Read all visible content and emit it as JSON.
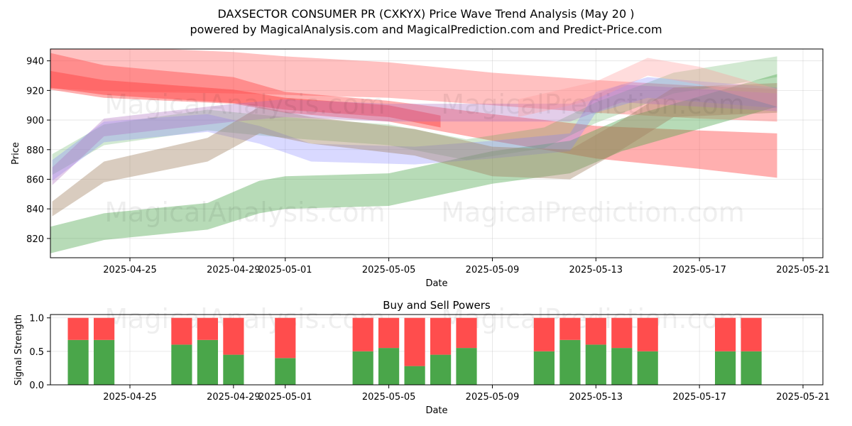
{
  "title_line1": "DAXSECTOR CONSUMER PR (CXKYX) Price Wave Trend Analysis (May 20 )",
  "title_line2": "powered by MagicalAnalysis.com and MagicalPrediction.com and Predict-Price.com",
  "watermarks": [
    "MagicalAnalysis.com",
    "MagicalPrediction.com"
  ],
  "colors": {
    "red": "#ff4d4d",
    "green": "#4aa64a",
    "blue": "#8080ff",
    "tan": "#a08060",
    "purple": "#b070c0",
    "pink": "#ff9a9a"
  },
  "chart_data": [
    {
      "type": "area",
      "title": "",
      "xlabel": "Date",
      "ylabel": "Price",
      "x_ticks": [
        "2025-04-25",
        "2025-04-29",
        "2025-05-01",
        "2025-05-05",
        "2025-05-09",
        "2025-05-13",
        "2025-05-17",
        "2025-05-21"
      ],
      "xlim": [
        "2025-04-21",
        "2025-05-21"
      ],
      "y_ticks": [
        820,
        840,
        860,
        880,
        900,
        920,
        940
      ],
      "ylim": [
        807,
        948
      ],
      "grid": true,
      "series": [
        {
          "color": "red",
          "opacity": 0.45,
          "points": [
            [
              "2025-04-21",
              936
            ],
            [
              "2025-04-24",
              926
            ],
            [
              "2025-04-29",
              920
            ],
            [
              "2025-05-01",
              912
            ],
            [
              "2025-05-05",
              906
            ],
            [
              "2025-05-09",
              895
            ],
            [
              "2025-05-13",
              885
            ],
            [
              "2025-05-17",
              880
            ],
            [
              "2025-05-20",
              876
            ]
          ],
          "width": [
            26,
            22,
            18,
            14,
            14,
            18,
            22,
            26,
            30
          ]
        },
        {
          "color": "red",
          "opacity": 0.55,
          "points": [
            [
              "2025-04-21",
              930
            ],
            [
              "2025-04-24",
              922
            ],
            [
              "2025-04-29",
              916
            ],
            [
              "2025-05-01",
              911
            ],
            [
              "2025-05-05",
              906
            ],
            [
              "2025-05-07",
              899
            ]
          ],
          "width": [
            12,
            10,
            9,
            8,
            8,
            8
          ]
        },
        {
          "color": "red",
          "opacity": 0.35,
          "points": [
            [
              "2025-04-21",
              938
            ],
            [
              "2025-04-25",
              934
            ],
            [
              "2025-04-29",
              932
            ],
            [
              "2025-05-01",
              930
            ],
            [
              "2025-05-05",
              927
            ],
            [
              "2025-05-09",
              921
            ],
            [
              "2025-05-13",
              916
            ],
            [
              "2025-05-17",
              912
            ],
            [
              "2025-05-20",
              910
            ]
          ],
          "width": [
            32,
            30,
            28,
            26,
            24,
            22,
            22,
            22,
            22
          ]
        },
        {
          "color": "green",
          "opacity": 0.4,
          "points": [
            [
              "2025-04-21",
              815
            ],
            [
              "2025-04-24",
              828
            ],
            [
              "2025-04-28",
              835
            ],
            [
              "2025-04-30",
              848
            ],
            [
              "2025-05-01",
              851
            ],
            [
              "2025-05-05",
              853
            ],
            [
              "2025-05-09",
              868
            ],
            [
              "2025-05-12",
              875
            ],
            [
              "2025-05-14",
              890
            ],
            [
              "2025-05-17",
              905
            ],
            [
              "2025-05-20",
              920
            ]
          ],
          "width": [
            18,
            18,
            18,
            22,
            22,
            22,
            22,
            22,
            22,
            22,
            22
          ]
        },
        {
          "color": "green",
          "opacity": 0.25,
          "points": [
            [
              "2025-04-22",
              870
            ],
            [
              "2025-04-24",
              890
            ],
            [
              "2025-04-28",
              900
            ],
            [
              "2025-05-01",
              895
            ],
            [
              "2025-05-05",
              890
            ],
            [
              "2025-05-08",
              880
            ],
            [
              "2025-05-11",
              888
            ],
            [
              "2025-05-13",
              905
            ],
            [
              "2025-05-16",
              925
            ],
            [
              "2025-05-20",
              936
            ]
          ],
          "width": [
            14,
            14,
            14,
            14,
            14,
            14,
            14,
            14,
            14,
            14
          ]
        },
        {
          "color": "blue",
          "opacity": 0.3,
          "points": [
            [
              "2025-04-22",
              866
            ],
            [
              "2025-04-24",
              892
            ],
            [
              "2025-04-28",
              898
            ],
            [
              "2025-04-30",
              890
            ],
            [
              "2025-05-02",
              878
            ],
            [
              "2025-05-06",
              876
            ],
            [
              "2025-05-09",
              880
            ],
            [
              "2025-05-12",
              885
            ],
            [
              "2025-05-13",
              912
            ],
            [
              "2025-05-15",
              922
            ],
            [
              "2025-05-20",
              915
            ]
          ],
          "width": [
            14,
            14,
            12,
            12,
            12,
            12,
            12,
            12,
            14,
            14,
            14
          ]
        },
        {
          "color": "tan",
          "opacity": 0.4,
          "points": [
            [
              "2025-04-22",
              840
            ],
            [
              "2025-04-24",
              865
            ],
            [
              "2025-04-28",
              880
            ],
            [
              "2025-04-30",
              900
            ],
            [
              "2025-05-02",
              893
            ],
            [
              "2025-05-06",
              885
            ],
            [
              "2025-05-09",
              872
            ],
            [
              "2025-05-12",
              870
            ],
            [
              "2025-05-14",
              890
            ],
            [
              "2025-05-16",
              912
            ],
            [
              "2025-05-20",
              915
            ]
          ],
          "width": [
            10,
            14,
            16,
            18,
            18,
            18,
            20,
            20,
            20,
            20,
            20
          ]
        },
        {
          "color": "purple",
          "opacity": 0.35,
          "points": [
            [
              "2025-04-22",
              862
            ],
            [
              "2025-04-24",
              895
            ],
            [
              "2025-04-29",
              905
            ],
            [
              "2025-05-01",
              908
            ],
            [
              "2025-05-05",
              905
            ],
            [
              "2025-05-08",
              905
            ],
            [
              "2025-05-12",
              905
            ],
            [
              "2025-05-14",
              918
            ],
            [
              "2025-05-17",
              915
            ],
            [
              "2025-05-20",
              912
            ]
          ],
          "width": [
            12,
            12,
            12,
            12,
            12,
            12,
            12,
            12,
            12,
            12
          ]
        },
        {
          "color": "pink",
          "opacity": 0.35,
          "points": [
            [
              "2025-05-10",
              908
            ],
            [
              "2025-05-13",
              920
            ],
            [
              "2025-05-15",
              936
            ],
            [
              "2025-05-17",
              930
            ],
            [
              "2025-05-20",
              915
            ]
          ],
          "width": [
            12,
            12,
            12,
            12,
            12
          ]
        }
      ]
    },
    {
      "type": "bar",
      "title": "Buy and Sell Powers",
      "xlabel": "Date",
      "ylabel": "Signal Strength",
      "x_ticks": [
        "2025-04-25",
        "2025-04-29",
        "2025-05-01",
        "2025-05-05",
        "2025-05-09",
        "2025-05-13",
        "2025-05-17",
        "2025-05-21"
      ],
      "y_ticks": [
        "0.0",
        "0.5",
        "1.0"
      ],
      "ylim": [
        0,
        1.05
      ],
      "grid": true,
      "series_names": [
        "buy",
        "sell"
      ],
      "bar_colors": {
        "buy": "#4aa64a",
        "sell": "#ff4d4d"
      },
      "bars": [
        {
          "x": "2025-04-23",
          "buy": 0.67
        },
        {
          "x": "2025-04-24",
          "buy": 0.67
        },
        {
          "x": "2025-04-27",
          "buy": 0.6
        },
        {
          "x": "2025-04-28",
          "buy": 0.67
        },
        {
          "x": "2025-04-29",
          "buy": 0.45
        },
        {
          "x": "2025-05-01",
          "buy": 0.4
        },
        {
          "x": "2025-05-04",
          "buy": 0.5
        },
        {
          "x": "2025-05-05",
          "buy": 0.55
        },
        {
          "x": "2025-05-06",
          "buy": 0.28
        },
        {
          "x": "2025-05-07",
          "buy": 0.45
        },
        {
          "x": "2025-05-08",
          "buy": 0.55
        },
        {
          "x": "2025-05-11",
          "buy": 0.5
        },
        {
          "x": "2025-05-12",
          "buy": 0.67
        },
        {
          "x": "2025-05-13",
          "buy": 0.6
        },
        {
          "x": "2025-05-14",
          "buy": 0.55
        },
        {
          "x": "2025-05-15",
          "buy": 0.5
        },
        {
          "x": "2025-05-18",
          "buy": 0.5
        },
        {
          "x": "2025-05-19",
          "buy": 0.5
        }
      ]
    }
  ]
}
